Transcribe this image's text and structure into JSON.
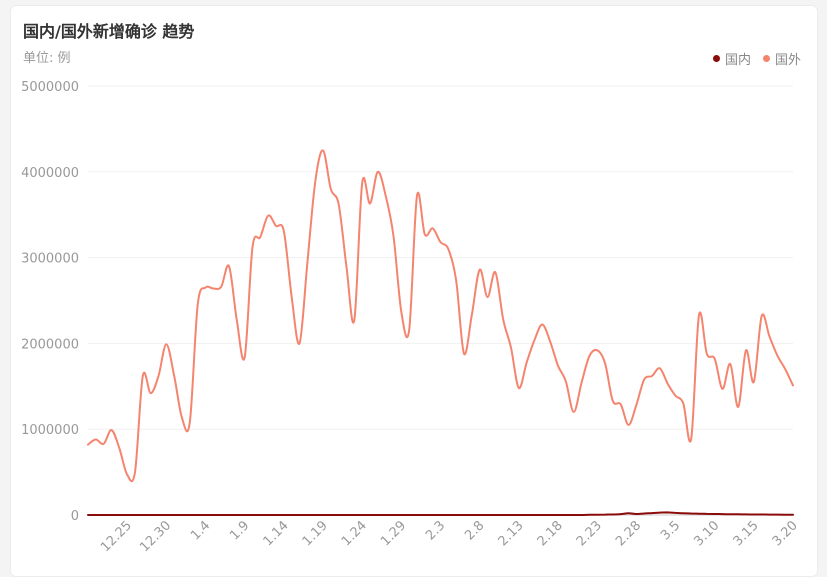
{
  "header": {
    "title": "国内/国外新增确诊 趋势",
    "unit": "单位: 例"
  },
  "legend": [
    {
      "name": "国内",
      "color": "#8b0a0a"
    },
    {
      "name": "国外",
      "color": "#f5846e"
    }
  ],
  "chart_data": {
    "type": "line",
    "title": "国内/国外新增确诊 趋势",
    "ylabel": "单位: 例",
    "ylim": [
      0,
      5000000
    ],
    "yticks": [
      "0",
      "1000000",
      "2000000",
      "3000000",
      "4000000",
      "5000000"
    ],
    "grid": true,
    "legend_position": "top-right",
    "x_tick_labels": [
      "12.25",
      "12.30",
      "1.4",
      "1.9",
      "1.14",
      "1.19",
      "1.24",
      "1.29",
      "2.3",
      "2.8",
      "2.13",
      "2.18",
      "2.23",
      "2.28",
      "3.5",
      "3.10",
      "3.15",
      "3.20"
    ],
    "x_tick_index": [
      5,
      10,
      15,
      20,
      25,
      30,
      35,
      40,
      45,
      50,
      55,
      60,
      65,
      70,
      75,
      80,
      85,
      90
    ],
    "series": [
      {
        "name": "国外",
        "color": "#f5846e",
        "values": [
          820000,
          880000,
          830000,
          990000,
          780000,
          470000,
          500000,
          1620000,
          1420000,
          1620000,
          1990000,
          1620000,
          1130000,
          1080000,
          2450000,
          2650000,
          2640000,
          2660000,
          2900000,
          2270000,
          1840000,
          3120000,
          3240000,
          3490000,
          3370000,
          3310000,
          2540000,
          2000000,
          2930000,
          3880000,
          4250000,
          3800000,
          3620000,
          2890000,
          2270000,
          3870000,
          3630000,
          4000000,
          3720000,
          3250000,
          2370000,
          2160000,
          3720000,
          3270000,
          3340000,
          3180000,
          3100000,
          2730000,
          1880000,
          2330000,
          2860000,
          2540000,
          2830000,
          2280000,
          1950000,
          1480000,
          1780000,
          2040000,
          2220000,
          2020000,
          1740000,
          1560000,
          1200000,
          1540000,
          1850000,
          1920000,
          1770000,
          1330000,
          1290000,
          1050000,
          1280000,
          1580000,
          1620000,
          1710000,
          1530000,
          1390000,
          1300000,
          890000,
          2330000,
          1880000,
          1820000,
          1470000,
          1760000,
          1260000,
          1920000,
          1550000,
          2320000,
          2080000,
          1860000,
          1700000,
          1510000
        ]
      },
      {
        "name": "国内",
        "color": "#8b0a0a",
        "values": [
          0,
          0,
          0,
          0,
          0,
          0,
          0,
          0,
          0,
          0,
          0,
          0,
          0,
          0,
          0,
          0,
          0,
          0,
          0,
          0,
          0,
          0,
          0,
          0,
          0,
          0,
          0,
          0,
          0,
          0,
          0,
          0,
          0,
          0,
          0,
          0,
          0,
          0,
          0,
          0,
          0,
          0,
          0,
          0,
          0,
          0,
          0,
          0,
          0,
          0,
          0,
          0,
          0,
          0,
          0,
          0,
          0,
          0,
          0,
          0,
          0,
          0,
          0,
          0,
          2000,
          4000,
          5000,
          6000,
          10000,
          20000,
          12000,
          18000,
          22000,
          28000,
          30000,
          25000,
          20000,
          18000,
          15000,
          13000,
          12000,
          10000,
          9000,
          8000,
          7000,
          6000,
          6000,
          5000,
          5000,
          4000,
          4000
        ]
      }
    ]
  }
}
